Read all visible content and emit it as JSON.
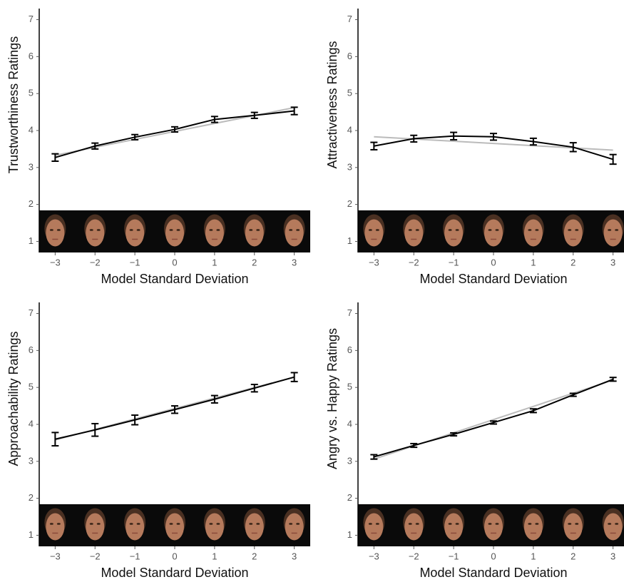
{
  "chart_data": [
    {
      "type": "line",
      "y_label": "Trustworthiness Ratings",
      "x_label": "Model Standard Deviation",
      "x": [
        -3,
        -2,
        -1,
        0,
        1,
        2,
        3
      ],
      "values": [
        3.27,
        3.58,
        3.82,
        4.03,
        4.3,
        4.41,
        4.53
      ],
      "errors": [
        0.1,
        0.08,
        0.07,
        0.07,
        0.08,
        0.08,
        0.1
      ],
      "trend": [
        3.33,
        3.545,
        3.76,
        3.975,
        4.19,
        4.405,
        4.62
      ],
      "color": "#000000",
      "trend_color": "#bbbbbb",
      "xlim": [
        -3.4,
        3.4
      ],
      "ylim": [
        0.7,
        7.3
      ],
      "xticks": [
        {
          "value": -3,
          "label": "−3"
        },
        {
          "value": -2,
          "label": "−2"
        },
        {
          "value": -1,
          "label": "−1"
        },
        0,
        1,
        2,
        3
      ],
      "yticks": [
        1,
        2,
        3,
        4,
        5,
        6,
        7
      ]
    },
    {
      "type": "line",
      "y_label": "Attractiveness Ratings",
      "x_label": "Model Standard Deviation",
      "x": [
        -3,
        -2,
        -1,
        0,
        1,
        2,
        3
      ],
      "values": [
        3.58,
        3.78,
        3.85,
        3.83,
        3.7,
        3.55,
        3.22
      ],
      "errors": [
        0.1,
        0.09,
        0.1,
        0.09,
        0.09,
        0.12,
        0.13
      ],
      "trend": [
        3.83,
        3.77,
        3.71,
        3.65,
        3.59,
        3.53,
        3.47
      ],
      "color": "#000000",
      "trend_color": "#bbbbbb",
      "xlim": [
        -3.4,
        3.4
      ],
      "ylim": [
        0.7,
        7.3
      ],
      "xticks": [
        {
          "value": -3,
          "label": "−3"
        },
        {
          "value": -2,
          "label": "−2"
        },
        {
          "value": -1,
          "label": "−1"
        },
        0,
        1,
        2,
        3
      ],
      "yticks": [
        1,
        2,
        3,
        4,
        5,
        6,
        7
      ]
    },
    {
      "type": "line",
      "y_label": "Approachability Ratings",
      "x_label": "Model Standard Deviation",
      "x": [
        -3,
        -2,
        -1,
        0,
        1,
        2,
        3
      ],
      "values": [
        3.6,
        3.85,
        4.12,
        4.4,
        4.68,
        4.98,
        5.28
      ],
      "errors": [
        0.18,
        0.17,
        0.13,
        0.1,
        0.1,
        0.1,
        0.12
      ],
      "trend": [
        3.58,
        3.863,
        4.147,
        4.43,
        4.713,
        4.997,
        5.28
      ],
      "color": "#000000",
      "trend_color": "#bbbbbb",
      "xlim": [
        -3.4,
        3.4
      ],
      "ylim": [
        0.7,
        7.3
      ],
      "xticks": [
        {
          "value": -3,
          "label": "−3"
        },
        {
          "value": -2,
          "label": "−2"
        },
        {
          "value": -1,
          "label": "−1"
        },
        0,
        1,
        2,
        3
      ],
      "yticks": [
        1,
        2,
        3,
        4,
        5,
        6,
        7
      ]
    },
    {
      "type": "line",
      "y_label": "Angry vs. Happy Ratings",
      "x_label": "Model Standard Deviation",
      "x": [
        -3,
        -2,
        -1,
        0,
        1,
        2,
        3
      ],
      "values": [
        3.12,
        3.43,
        3.73,
        4.05,
        4.37,
        4.8,
        5.22
      ],
      "errors": [
        0.06,
        0.05,
        0.04,
        0.04,
        0.05,
        0.04,
        0.05
      ],
      "trend": [
        3.06,
        3.417,
        3.773,
        4.13,
        4.487,
        4.843,
        5.2
      ],
      "color": "#000000",
      "trend_color": "#bbbbbb",
      "xlim": [
        -3.4,
        3.4
      ],
      "ylim": [
        0.7,
        7.3
      ],
      "xticks": [
        {
          "value": -3,
          "label": "−3"
        },
        {
          "value": -2,
          "label": "−2"
        },
        {
          "value": -1,
          "label": "−1"
        },
        0,
        1,
        2,
        3
      ],
      "yticks": [
        1,
        2,
        3,
        4,
        5,
        6,
        7
      ]
    }
  ]
}
